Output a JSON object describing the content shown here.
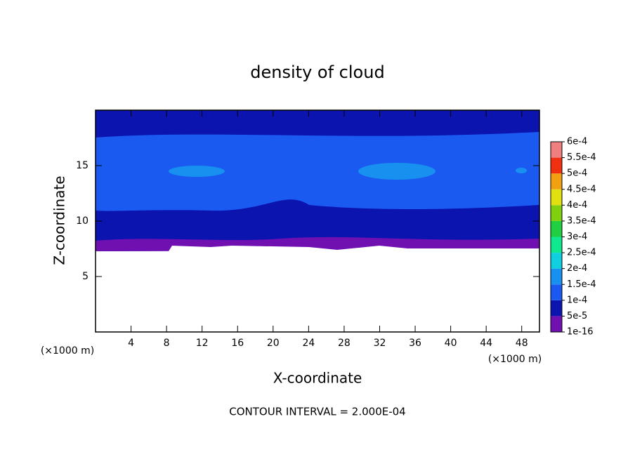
{
  "chart_data": {
    "type": "contour",
    "title": "density of cloud",
    "xlabel": "X-coordinate",
    "ylabel": "Z-coordinate",
    "x_unit": "(×1000 m)",
    "annotation": "CONTOUR INTERVAL = 2.000E-04",
    "xlim": [
      0,
      50
    ],
    "ylim": [
      0,
      20
    ],
    "xticks": [
      4,
      8,
      12,
      16,
      20,
      24,
      28,
      32,
      36,
      40,
      44,
      48
    ],
    "yticks": [
      5,
      10,
      15
    ],
    "colorbar": {
      "levels": [
        {
          "value": 1e-16,
          "label": "1e-16"
        },
        {
          "value": 5e-05,
          "label": "5e-5"
        },
        {
          "value": 0.0001,
          "label": "1e-4"
        },
        {
          "value": 0.00015,
          "label": "1.5e-4"
        },
        {
          "value": 0.0002,
          "label": "2e-4"
        },
        {
          "value": 0.00025,
          "label": "2.5e-4"
        },
        {
          "value": 0.0003,
          "label": "3e-4"
        },
        {
          "value": 0.00035,
          "label": "3.5e-4"
        },
        {
          "value": 0.0004,
          "label": "4e-4"
        },
        {
          "value": 0.00045,
          "label": "4.5e-4"
        },
        {
          "value": 0.0005,
          "label": "5e-4"
        },
        {
          "value": 0.00055,
          "label": "5.5e-4"
        },
        {
          "value": 0.0006,
          "label": "6e-4"
        }
      ],
      "colors": [
        "#7010b0",
        "#0c14b0",
        "#1a5af0",
        "#1890f0",
        "#10d0e0",
        "#10e890",
        "#20d040",
        "#80d010",
        "#e0e010",
        "#f0a010",
        "#f03010",
        "#f08080"
      ]
    }
  }
}
